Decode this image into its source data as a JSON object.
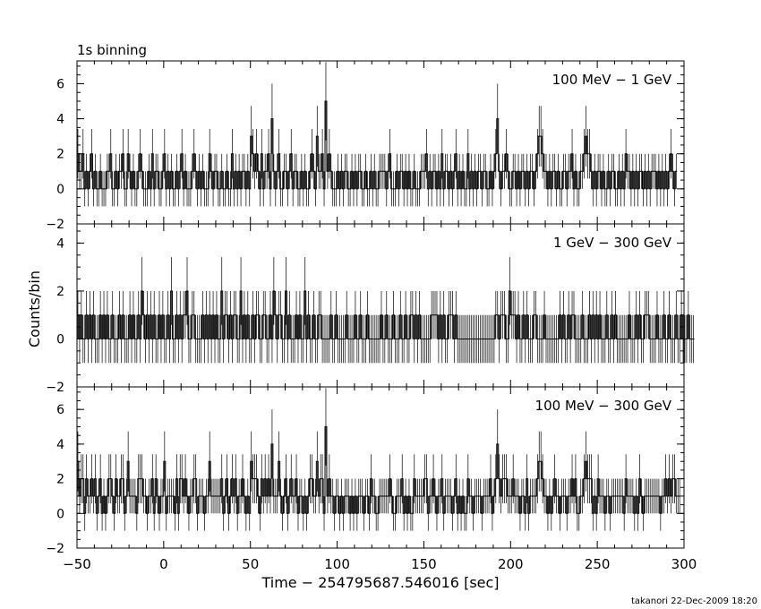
{
  "header": {
    "binning_label": "1s binning"
  },
  "footer": {
    "stamp": "takanori 22-Dec-2009 18:20"
  },
  "axes": {
    "xlabel": "Time − 254795687.546016 [sec]",
    "ylabel": "Counts/bin",
    "xlim": [
      -50,
      300
    ],
    "x_ticks": [
      "−50",
      "0",
      "50",
      "100",
      "150",
      "200",
      "250",
      "300"
    ]
  },
  "chart_data": [
    {
      "type": "line",
      "title": "100 MeV − 1 GeV",
      "ylim": [
        -2,
        7.3
      ],
      "y_ticks": [
        "−2",
        "0",
        "2",
        "4",
        "6"
      ],
      "x_start": -50,
      "bin_width": 1,
      "values": [
        2,
        1,
        1,
        2,
        0,
        1,
        0,
        1,
        2,
        0,
        1,
        0,
        0,
        1,
        0,
        0,
        0,
        1,
        1,
        2,
        0,
        0,
        1,
        0,
        1,
        1,
        2,
        0,
        0,
        2,
        1,
        0,
        1,
        0,
        0,
        1,
        2,
        1,
        0,
        0,
        0,
        1,
        0,
        2,
        0,
        1,
        1,
        0,
        0,
        1,
        2,
        0,
        1,
        0,
        1,
        0,
        0,
        1,
        0,
        1,
        2,
        0,
        1,
        0,
        0,
        0,
        1,
        2,
        1,
        0,
        1,
        0,
        1,
        0,
        0,
        0,
        2,
        1,
        0,
        1,
        1,
        0,
        0,
        1,
        0,
        0,
        1,
        0,
        0,
        2,
        0,
        1,
        0,
        1,
        0,
        1,
        1,
        0,
        1,
        0,
        3,
        2,
        1,
        2,
        1,
        0,
        2,
        0,
        1,
        1,
        2,
        0,
        4,
        1,
        0,
        1,
        2,
        0,
        0,
        1,
        1,
        0,
        1,
        2,
        0,
        1,
        1,
        0,
        0,
        1,
        0,
        1,
        0,
        0,
        1,
        2,
        1,
        0,
        3,
        1,
        1,
        2,
        0,
        5,
        1,
        2,
        1,
        0,
        0,
        0,
        1,
        0,
        1,
        0,
        1,
        1,
        0,
        0,
        1,
        0,
        1,
        0,
        1,
        1,
        0,
        0,
        1,
        0,
        0,
        1,
        0,
        1,
        0,
        0,
        1,
        1,
        1,
        1,
        0,
        1,
        2,
        0,
        0,
        0,
        1,
        0,
        1,
        1,
        0,
        1,
        0,
        1,
        0,
        0,
        1,
        0,
        0,
        0,
        1,
        1,
        1,
        2,
        0,
        1,
        0,
        1,
        1,
        0,
        1,
        0,
        2,
        0,
        1,
        1,
        0,
        1,
        0,
        1,
        2,
        0,
        1,
        0,
        1,
        0,
        0,
        2,
        0,
        1,
        0,
        1,
        0,
        1,
        1,
        0,
        1,
        1,
        0,
        0,
        1,
        0,
        1,
        2,
        4,
        1,
        0,
        1,
        1,
        2,
        1,
        0,
        0,
        1,
        1,
        0,
        1,
        0,
        1,
        1,
        0,
        1,
        0,
        1,
        1,
        0,
        1,
        2,
        3,
        3,
        2,
        1,
        1,
        0,
        1,
        0,
        1,
        1,
        0,
        1,
        0,
        0,
        1,
        1,
        0,
        1,
        1,
        2,
        0,
        1,
        0,
        0,
        1,
        1,
        2,
        3,
        2,
        2,
        1,
        0,
        1,
        0,
        1,
        1,
        0,
        1,
        0,
        0,
        1,
        0,
        1,
        1,
        0,
        0,
        1,
        0,
        1,
        0,
        2,
        1,
        1,
        0,
        1,
        0,
        1,
        0,
        1,
        1,
        0,
        1,
        0,
        1,
        0,
        1,
        1,
        1,
        0,
        1,
        0,
        1,
        0,
        1,
        0,
        1,
        2,
        1,
        0,
        1
      ]
    },
    {
      "type": "line",
      "title": "1 GeV − 300 GeV",
      "ylim": [
        -2,
        4.8
      ],
      "y_ticks": [
        "−2",
        "0",
        "2",
        "4"
      ],
      "x_start": -50,
      "bin_width": 1,
      "values": [
        1,
        0,
        1,
        0,
        0,
        1,
        0,
        1,
        0,
        1,
        0,
        0,
        0,
        1,
        0,
        1,
        0,
        1,
        0,
        0,
        1,
        0,
        0,
        0,
        1,
        0,
        1,
        0,
        0,
        0,
        1,
        0,
        1,
        0,
        0,
        1,
        0,
        2,
        1,
        0,
        1,
        0,
        1,
        0,
        1,
        0,
        0,
        1,
        0,
        1,
        0,
        0,
        1,
        0,
        2,
        0,
        0,
        1,
        0,
        1,
        0,
        1,
        1,
        2,
        0,
        0,
        1,
        1,
        0,
        0,
        0,
        0,
        1,
        0,
        1,
        0,
        1,
        0,
        1,
        0,
        1,
        0,
        0,
        2,
        0,
        1,
        1,
        0,
        1,
        0,
        1,
        1,
        0,
        0,
        2,
        0,
        1,
        0,
        1,
        0,
        0,
        1,
        0,
        1,
        1,
        0,
        0,
        1,
        1,
        0,
        0,
        1,
        0,
        2,
        1,
        0,
        1,
        1,
        0,
        0,
        2,
        0,
        1,
        0,
        0,
        0,
        1,
        0,
        1,
        0,
        0,
        2,
        0,
        1,
        0,
        0,
        1,
        0,
        0,
        1,
        1,
        0,
        0,
        0,
        0,
        0,
        1,
        0,
        0,
        1,
        0,
        0,
        0,
        0,
        0,
        1,
        0,
        0,
        0,
        0,
        1,
        0,
        0,
        1,
        0,
        0,
        0,
        1,
        0,
        0,
        0,
        0,
        0,
        0,
        0,
        1,
        0,
        0,
        1,
        0,
        0,
        0,
        1,
        0,
        0,
        0,
        1,
        0,
        0,
        1,
        0,
        0,
        1,
        1,
        0,
        1,
        0,
        1,
        0,
        0,
        0,
        0,
        0,
        0,
        1,
        1,
        1,
        1,
        0,
        1,
        0,
        1,
        0,
        0,
        1,
        1,
        1,
        0,
        1,
        0,
        0,
        0,
        0,
        0,
        0,
        0,
        0,
        0,
        0,
        0,
        0,
        0,
        0,
        0,
        0,
        0,
        0,
        0,
        0,
        0,
        0,
        1,
        1,
        0,
        1,
        1,
        1,
        0,
        0,
        2,
        1,
        1,
        1,
        0,
        1,
        0,
        0,
        1,
        0,
        1,
        0,
        0,
        0,
        1,
        1,
        0,
        0,
        0,
        0,
        1,
        0,
        0,
        0,
        0,
        0,
        0,
        0,
        0,
        1,
        0,
        1,
        0,
        0,
        1,
        0,
        1,
        1,
        0,
        0,
        0,
        0,
        1,
        0,
        0,
        0,
        1,
        0,
        1,
        0,
        1,
        0,
        1,
        0,
        0,
        0,
        1,
        0,
        0,
        1,
        0,
        1,
        0,
        0,
        0,
        0,
        0,
        0,
        0,
        1,
        0,
        0,
        0,
        1,
        0,
        1,
        0,
        0,
        1,
        1,
        1,
        0,
        0,
        0,
        0,
        1,
        0,
        0,
        0,
        1,
        0,
        0,
        1,
        0,
        0,
        0,
        1,
        0,
        0,
        1,
        0,
        0,
        0,
        1,
        0,
        0,
        0
      ]
    },
    {
      "type": "line",
      "title": "100 MeV − 300 GeV",
      "ylim": [
        -2,
        7.3
      ],
      "y_ticks": [
        "−2",
        "0",
        "2",
        "4",
        "6"
      ],
      "x_start": -50,
      "bin_width": 1,
      "values": [
        3,
        1,
        2,
        2,
        0,
        2,
        1,
        1,
        2,
        1,
        2,
        0,
        1,
        2,
        0,
        1,
        0,
        1,
        2,
        2,
        1,
        0,
        2,
        1,
        1,
        2,
        2,
        0,
        1,
        3,
        1,
        1,
        1,
        1,
        0,
        2,
        2,
        2,
        1,
        1,
        0,
        1,
        1,
        2,
        0,
        2,
        1,
        0,
        1,
        1,
        3,
        0,
        1,
        1,
        1,
        1,
        0,
        2,
        0,
        2,
        2,
        1,
        2,
        1,
        0,
        1,
        1,
        2,
        2,
        0,
        1,
        1,
        1,
        0,
        1,
        1,
        3,
        1,
        1,
        1,
        1,
        1,
        1,
        2,
        0,
        1,
        2,
        0,
        1,
        2,
        1,
        2,
        0,
        1,
        1,
        2,
        1,
        0,
        1,
        0,
        3,
        2,
        2,
        2,
        1,
        0,
        2,
        1,
        2,
        1,
        2,
        1,
        4,
        1,
        1,
        1,
        3,
        1,
        0,
        1,
        2,
        0,
        1,
        2,
        1,
        1,
        2,
        0,
        1,
        1,
        0,
        1,
        0,
        1,
        2,
        2,
        1,
        1,
        3,
        1,
        2,
        2,
        0,
        5,
        1,
        2,
        1,
        1,
        0,
        1,
        1,
        0,
        1,
        0,
        1,
        1,
        1,
        0,
        1,
        0,
        1,
        0,
        1,
        1,
        1,
        0,
        1,
        1,
        0,
        2,
        1,
        1,
        0,
        0,
        1,
        1,
        1,
        1,
        1,
        1,
        2,
        1,
        0,
        0,
        1,
        1,
        1,
        2,
        0,
        1,
        0,
        1,
        0,
        0,
        2,
        1,
        1,
        1,
        1,
        1,
        2,
        2,
        0,
        1,
        1,
        2,
        1,
        0,
        1,
        1,
        2,
        0,
        1,
        1,
        1,
        1,
        0,
        1,
        2,
        0,
        1,
        0,
        1,
        0,
        0,
        2,
        1,
        1,
        0,
        1,
        1,
        1,
        1,
        0,
        1,
        1,
        1,
        1,
        2,
        0,
        1,
        2,
        4,
        2,
        1,
        2,
        2,
        2,
        1,
        1,
        1,
        2,
        1,
        1,
        1,
        0,
        1,
        1,
        0,
        2,
        0,
        1,
        1,
        1,
        1,
        2,
        3,
        3,
        2,
        1,
        1,
        0,
        1,
        0,
        1,
        2,
        1,
        1,
        0,
        1,
        1,
        1,
        0,
        1,
        1,
        2,
        1,
        2,
        0,
        0,
        1,
        1,
        2,
        3,
        2,
        2,
        2,
        0,
        1,
        0,
        2,
        1,
        1,
        1,
        0,
        1,
        1,
        0,
        1,
        1,
        1,
        1,
        1,
        1,
        1,
        0,
        2,
        1,
        1,
        1,
        1,
        0,
        1,
        0,
        2,
        1,
        0,
        1,
        1,
        1,
        1,
        1,
        1,
        1,
        1,
        1,
        0,
        1,
        1,
        2,
        1,
        2,
        1,
        2,
        2,
        1,
        1,
        1
      ]
    }
  ]
}
